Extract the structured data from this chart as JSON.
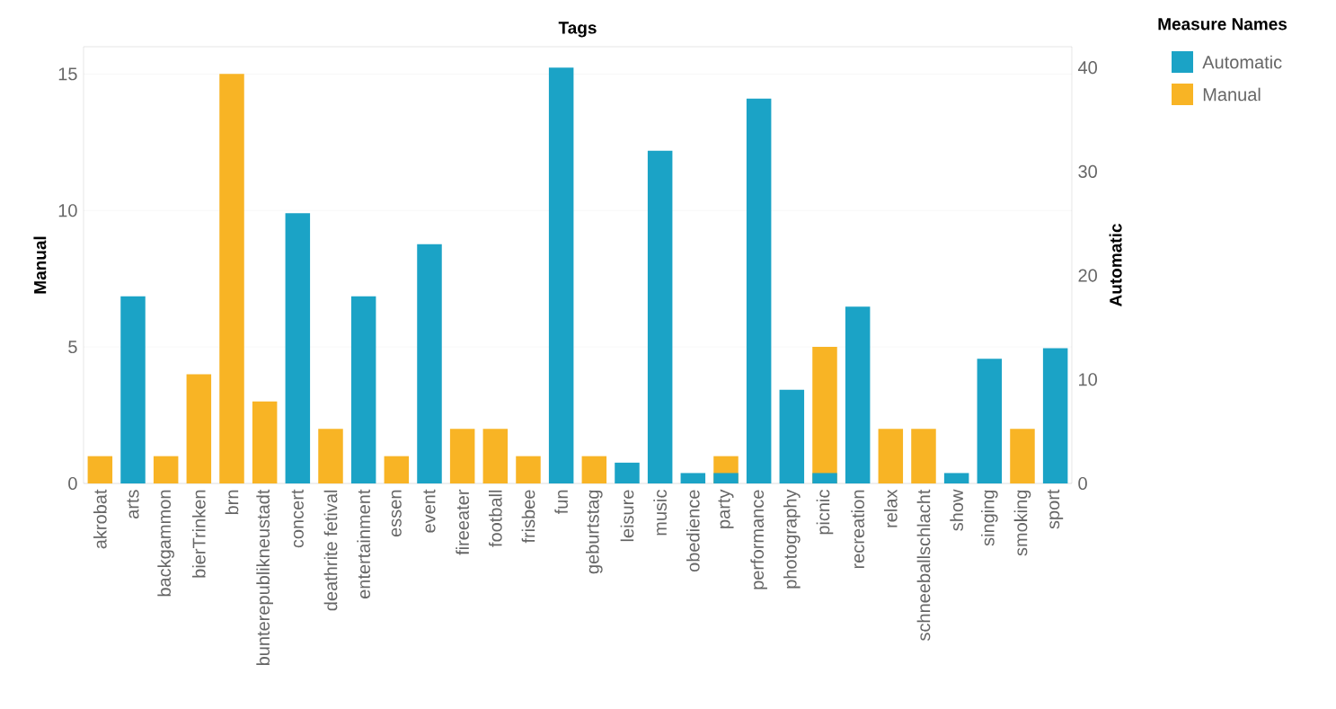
{
  "chart_data": {
    "type": "bar",
    "xlabel": "Tags",
    "ylabel": "Manual",
    "y2label": "Automatic",
    "legend_title": "Measure Names",
    "categories": [
      "akrobat",
      "arts",
      "backgammon",
      "bierTrinken",
      "brn",
      "bunterepublikneustadt",
      "concert",
      "deathrite fetival",
      "entertainment",
      "essen",
      "event",
      "fireeater",
      "football",
      "frisbee",
      "fun",
      "geburtstag",
      "leisure",
      "music",
      "obedience",
      "party",
      "performance",
      "photography",
      "picnic",
      "recreation",
      "relax",
      "schneeballschlacht",
      "show",
      "singing",
      "smoking",
      "sport"
    ],
    "series": [
      {
        "name": "Automatic",
        "color": "#1ba3c6",
        "axis": "y2",
        "values": [
          null,
          18,
          null,
          null,
          null,
          null,
          26,
          null,
          18,
          null,
          23,
          null,
          null,
          null,
          40,
          null,
          2,
          32,
          1,
          1,
          37,
          9,
          1,
          17,
          null,
          null,
          1,
          12,
          null,
          13
        ]
      },
      {
        "name": "Manual",
        "color": "#f8b425",
        "values": [
          1,
          null,
          1,
          4,
          15,
          3,
          null,
          2,
          null,
          1,
          null,
          2,
          2,
          1,
          null,
          1,
          null,
          null,
          null,
          1,
          null,
          null,
          5,
          null,
          2,
          2,
          null,
          null,
          2,
          null
        ]
      }
    ],
    "ylim": [
      0,
      16
    ],
    "yticks": [
      0,
      5,
      10,
      15
    ],
    "y2lim": [
      0,
      42
    ],
    "y2ticks": [
      0,
      10,
      20,
      30,
      40
    ],
    "grid": "y",
    "legend": "top right"
  }
}
